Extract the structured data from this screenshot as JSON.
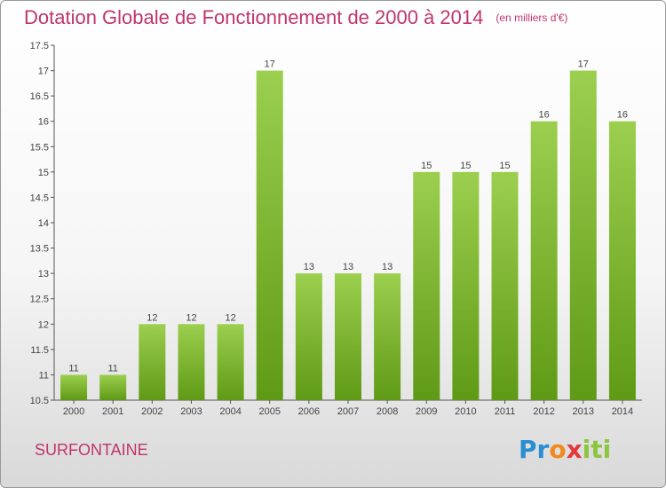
{
  "title": "Dotation Globale de Fonctionnement de 2000 à 2014",
  "unit": "(en milliers d'€)",
  "commune": "SURFONTAINE",
  "logo": {
    "parts": [
      "Pr",
      "o",
      "x",
      "iti"
    ]
  },
  "colors": {
    "title": "#c0356c",
    "bar_top": "#9ccf4f",
    "bar_bottom": "#5f9a16"
  },
  "chart_data": {
    "type": "bar",
    "title": "Dotation Globale de Fonctionnement de 2000 à 2014",
    "categories": [
      "2000",
      "2001",
      "2002",
      "2003",
      "2004",
      "2005",
      "2006",
      "2007",
      "2008",
      "2009",
      "2010",
      "2011",
      "2012",
      "2013",
      "2014"
    ],
    "values": [
      11,
      11,
      12,
      12,
      12,
      17,
      13,
      13,
      13,
      15,
      15,
      15,
      16,
      17,
      16
    ],
    "labels": [
      "11",
      "11",
      "12",
      "12",
      "12",
      "17",
      "13",
      "13",
      "13",
      "15",
      "15",
      "15",
      "16",
      "17",
      "16"
    ],
    "ylim": [
      10.5,
      17.5
    ],
    "yticks": [
      "10.5",
      "11",
      "11.5",
      "12",
      "12.5",
      "13",
      "13.5",
      "14",
      "14.5",
      "15",
      "15.5",
      "16",
      "16.5",
      "17",
      "17.5"
    ],
    "grid": false,
    "xlabel": "",
    "ylabel": ""
  }
}
